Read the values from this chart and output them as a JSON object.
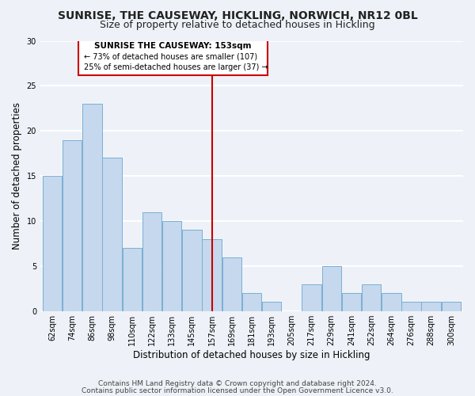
{
  "title": "SUNRISE, THE CAUSEWAY, HICKLING, NORWICH, NR12 0BL",
  "subtitle": "Size of property relative to detached houses in Hickling",
  "xlabel": "Distribution of detached houses by size in Hickling",
  "ylabel": "Number of detached properties",
  "bin_labels": [
    "62sqm",
    "74sqm",
    "86sqm",
    "98sqm",
    "110sqm",
    "122sqm",
    "133sqm",
    "145sqm",
    "157sqm",
    "169sqm",
    "181sqm",
    "193sqm",
    "205sqm",
    "217sqm",
    "229sqm",
    "241sqm",
    "252sqm",
    "264sqm",
    "276sqm",
    "288sqm",
    "300sqm"
  ],
  "bar_heights": [
    15,
    19,
    23,
    17,
    7,
    11,
    10,
    9,
    8,
    6,
    2,
    1,
    0,
    3,
    5,
    2,
    3,
    2,
    1,
    1,
    1
  ],
  "bar_color": "#c5d8ed",
  "bar_edge_color": "#7bafd4",
  "reference_line_color": "#cc0000",
  "annotation_title": "SUNRISE THE CAUSEWAY: 153sqm",
  "annotation_line1": "← 73% of detached houses are smaller (107)",
  "annotation_line2": "25% of semi-detached houses are larger (37) →",
  "annotation_box_edge_color": "#cc0000",
  "annotation_box_bg": "#ffffff",
  "ylim": [
    0,
    30
  ],
  "yticks": [
    0,
    5,
    10,
    15,
    20,
    25,
    30
  ],
  "footer_line1": "Contains HM Land Registry data © Crown copyright and database right 2024.",
  "footer_line2": "Contains public sector information licensed under the Open Government Licence v3.0.",
  "background_color": "#eef2f8",
  "grid_color": "#ffffff",
  "title_fontsize": 10,
  "subtitle_fontsize": 9,
  "axis_label_fontsize": 8.5,
  "tick_fontsize": 7,
  "footer_fontsize": 6.5
}
